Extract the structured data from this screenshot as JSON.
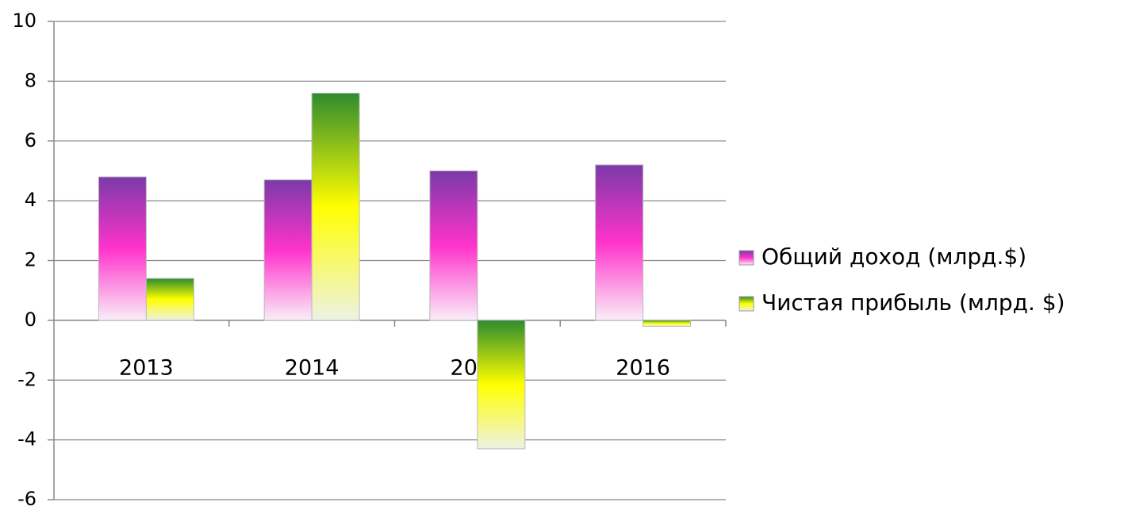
{
  "chart_data": {
    "type": "bar",
    "categories": [
      "2013",
      "2014",
      "2015",
      "2016"
    ],
    "series": [
      {
        "name": "Общий доход (млрд.$)",
        "color": "#ff33cc",
        "colors": [
          "#7a3aa8",
          "#ff33cc",
          "#f9eef7"
        ],
        "values": [
          4.8,
          4.7,
          5.0,
          5.2
        ]
      },
      {
        "name": "Чистая прибыль (млрд. $)",
        "color": "#ffff00",
        "colors": [
          "#2e8b2e",
          "#ffff00",
          "#eef2e4"
        ],
        "values": [
          1.4,
          7.6,
          -4.3,
          -0.2
        ]
      }
    ],
    "ylim": [
      -6,
      10
    ],
    "yticks": [
      -6,
      -4,
      -2,
      0,
      2,
      4,
      6,
      8,
      10
    ],
    "grid": true,
    "legend": "right"
  }
}
